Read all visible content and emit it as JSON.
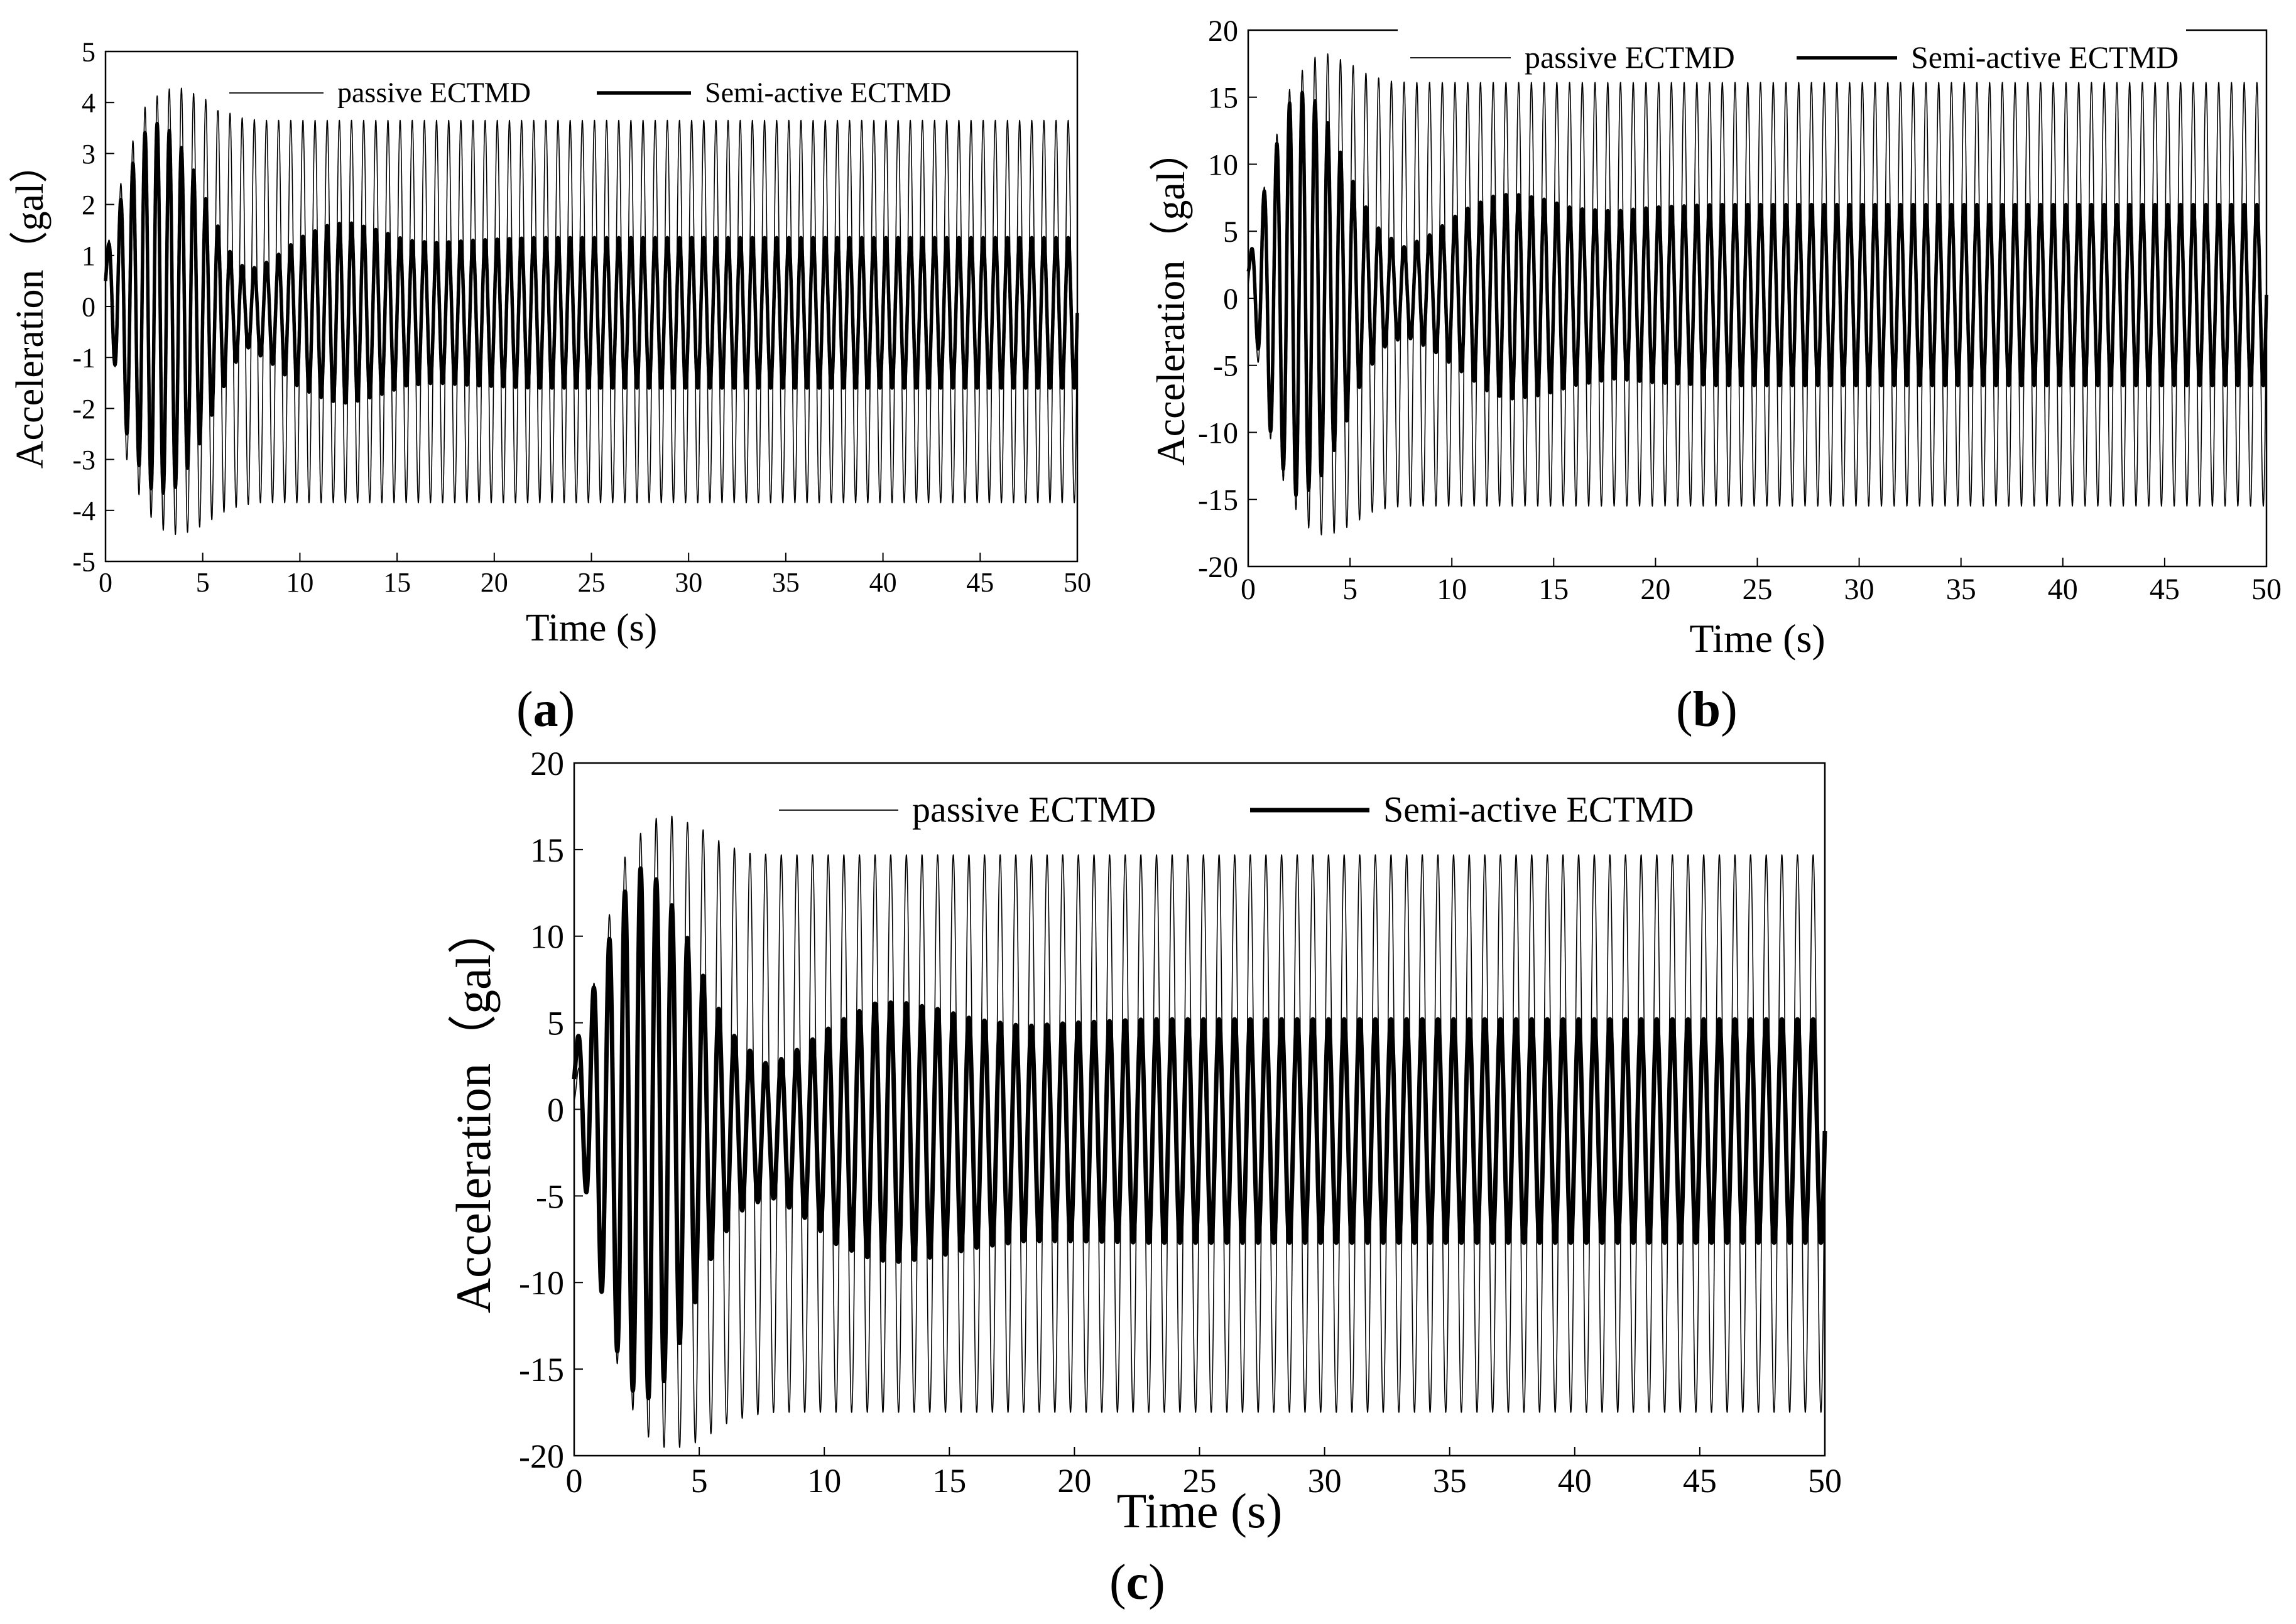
{
  "figure": {
    "legend_passive": "passive ECTMD",
    "legend_semiactive": "Semi-active ECTMD",
    "xlabel": "Time (s)",
    "ylabel": "Acceleration（gal）"
  },
  "chart_data": [
    {
      "id": "a",
      "type": "line",
      "panel_label": "a",
      "title": "",
      "xlabel": "Time (s)",
      "ylabel": "Acceleration（gal）",
      "xlim": [
        0,
        50
      ],
      "ylim": [
        -5,
        5
      ],
      "xticks": [
        0,
        5,
        10,
        15,
        20,
        25,
        30,
        35,
        40,
        45,
        50
      ],
      "yticks": [
        -5,
        -4,
        -3,
        -2,
        -1,
        0,
        1,
        2,
        3,
        4,
        5
      ],
      "grid": false,
      "legend_position": "top",
      "series": [
        {
          "name": "passive ECTMD",
          "style": "thin",
          "frequency_hz": 1.6,
          "upper_envelope": {
            "t": [
              0,
              1,
              2,
              3,
              3.8,
              5,
              6,
              7,
              8,
              9,
              50
            ],
            "v": [
              1.0,
              2.8,
              3.9,
              4.25,
              4.3,
              4.1,
              3.85,
              3.7,
              3.65,
              3.65,
              3.65
            ]
          },
          "lower_envelope": {
            "t": [
              0,
              1,
              2,
              3,
              3.8,
              5,
              6,
              7,
              8,
              9,
              50
            ],
            "v": [
              0.4,
              -2.9,
              -4.0,
              -4.4,
              -4.5,
              -4.3,
              -4.05,
              -3.9,
              -3.85,
              -3.85,
              -3.85
            ]
          }
        },
        {
          "name": "Semi-active ECTMD",
          "style": "thick",
          "frequency_hz": 1.6,
          "upper_envelope": {
            "t": [
              0,
              1,
              2,
              2.6,
              3.5,
              4.5,
              5.5,
              6.5,
              7.3,
              8.5,
              10,
              11.5,
              12.5,
              14,
              15.5,
              17,
              19,
              22,
              50
            ],
            "v": [
              1.0,
              2.4,
              3.4,
              3.6,
              3.4,
              2.7,
              1.8,
              1.0,
              0.7,
              0.9,
              1.35,
              1.6,
              1.65,
              1.5,
              1.3,
              1.25,
              1.3,
              1.35,
              1.35
            ]
          },
          "lower_envelope": {
            "t": [
              0,
              1,
              2,
              2.6,
              3.5,
              4.5,
              5.5,
              6.5,
              7.3,
              8.5,
              10,
              11.5,
              12.5,
              14,
              15.5,
              17,
              19,
              22,
              50
            ],
            "v": [
              0.0,
              -2.4,
              -3.4,
              -3.7,
              -3.6,
              -3.0,
              -2.1,
              -1.2,
              -0.8,
              -1.1,
              -1.6,
              -1.85,
              -1.9,
              -1.75,
              -1.55,
              -1.5,
              -1.55,
              -1.6,
              -1.6
            ]
          }
        }
      ]
    },
    {
      "id": "b",
      "type": "line",
      "panel_label": "b",
      "title": "",
      "xlabel": "Time (s)",
      "ylabel": "Acceleration（gal）",
      "xlim": [
        0,
        50
      ],
      "ylim": [
        -20,
        20
      ],
      "xticks": [
        0,
        5,
        10,
        15,
        20,
        25,
        30,
        35,
        40,
        45,
        50
      ],
      "yticks": [
        -20,
        -15,
        -10,
        -5,
        0,
        5,
        10,
        15,
        20
      ],
      "grid": false,
      "legend_position": "top",
      "series": [
        {
          "name": "passive ECTMD",
          "style": "thin",
          "frequency_hz": 1.6,
          "upper_envelope": {
            "t": [
              0,
              1,
              2,
              3,
              3.8,
              5,
              6,
              7,
              8,
              9,
              50
            ],
            "v": [
              2.0,
              10.0,
              15.5,
              17.8,
              18.3,
              17.5,
              16.6,
              16.2,
              16.1,
              16.1,
              16.1
            ]
          },
          "lower_envelope": {
            "t": [
              0,
              1,
              2,
              3,
              3.8,
              5,
              6,
              7,
              8,
              9,
              50
            ],
            "v": [
              0.0,
              -10.0,
              -15.0,
              -17.2,
              -17.8,
              -17.0,
              -16.0,
              -15.6,
              -15.5,
              -15.5,
              -15.5
            ]
          }
        },
        {
          "name": "Semi-active ECTMD",
          "style": "thick",
          "frequency_hz": 1.6,
          "upper_envelope": {
            "t": [
              0,
              1,
              2,
              2.5,
              3.5,
              4.5,
              5.5,
              6.5,
              7.7,
              9,
              10.5,
              12,
              13,
              14.5,
              16,
              18,
              20,
              23,
              50
            ],
            "v": [
              2.5,
              9.5,
              14.5,
              15.5,
              14.5,
              11.0,
              7.5,
              5.0,
              3.8,
              4.8,
              6.5,
              7.6,
              7.8,
              7.4,
              6.7,
              6.5,
              6.8,
              7.0,
              7.0
            ]
          },
          "lower_envelope": {
            "t": [
              0,
              1,
              2,
              2.5,
              3.5,
              4.5,
              5.5,
              6.5,
              7.7,
              9,
              10.5,
              12,
              13,
              14.5,
              16,
              18,
              20,
              23,
              50
            ],
            "v": [
              1.5,
              -9.5,
              -14.0,
              -15.0,
              -13.5,
              -10.5,
              -6.5,
              -3.8,
              -2.8,
              -3.8,
              -5.5,
              -7.2,
              -7.5,
              -7.2,
              -6.5,
              -6.0,
              -6.3,
              -6.5,
              -6.5
            ]
          }
        }
      ]
    },
    {
      "id": "c",
      "type": "line",
      "panel_label": "c",
      "title": "",
      "xlabel": "Time (s)",
      "ylabel": "Acceleration（gal）",
      "xlim": [
        0,
        50
      ],
      "ylim": [
        -20,
        20
      ],
      "xticks": [
        0,
        5,
        10,
        15,
        20,
        25,
        30,
        35,
        40,
        45,
        50
      ],
      "yticks": [
        -20,
        -15,
        -10,
        -5,
        0,
        5,
        10,
        15,
        20
      ],
      "grid": false,
      "legend_position": "top",
      "series": [
        {
          "name": "passive ECTMD",
          "style": "thin",
          "frequency_hz": 1.6,
          "upper_envelope": {
            "t": [
              0,
              1,
              2,
              3,
              3.8,
              5,
              6,
              7,
              8,
              9,
              50
            ],
            "v": [
              1.0,
              9.0,
              14.5,
              16.7,
              17.0,
              16.3,
              15.3,
              14.8,
              14.7,
              14.7,
              14.7
            ]
          },
          "lower_envelope": {
            "t": [
              0,
              1,
              2,
              3,
              3.8,
              5,
              6,
              7,
              8,
              9,
              50
            ],
            "v": [
              0.0,
              -10.0,
              -16.5,
              -19.0,
              -19.7,
              -19.2,
              -18.2,
              -17.7,
              -17.5,
              -17.5,
              -17.5
            ]
          }
        },
        {
          "name": "Semi-active ECTMD",
          "style": "thick",
          "frequency_hz": 1.6,
          "upper_envelope": {
            "t": [
              0,
              1,
              2,
              2.7,
              3.5,
              4.5,
              5.5,
              6.5,
              7.8,
              9,
              10.5,
              12,
              13,
              14.5,
              16,
              18,
              20,
              23,
              50
            ],
            "v": [
              3.5,
              8.0,
              12.5,
              14.0,
              13.0,
              10.0,
              6.5,
              4.0,
              2.5,
              3.5,
              5.0,
              6.1,
              6.2,
              5.8,
              5.2,
              4.8,
              5.0,
              5.2,
              5.2
            ]
          },
          "lower_envelope": {
            "t": [
              0,
              1,
              2,
              2.7,
              3.5,
              4.5,
              5.5,
              6.5,
              7.8,
              9,
              10.5,
              12,
              13,
              14.5,
              16,
              18,
              20,
              23,
              50
            ],
            "v": [
              0.0,
              -10.0,
              -15.5,
              -17.0,
              -16.0,
              -12.5,
              -8.5,
              -6.0,
              -5.0,
              -6.0,
              -7.8,
              -8.7,
              -8.8,
              -8.5,
              -8.0,
              -7.6,
              -7.6,
              -7.7,
              -7.7
            ]
          }
        }
      ]
    }
  ]
}
